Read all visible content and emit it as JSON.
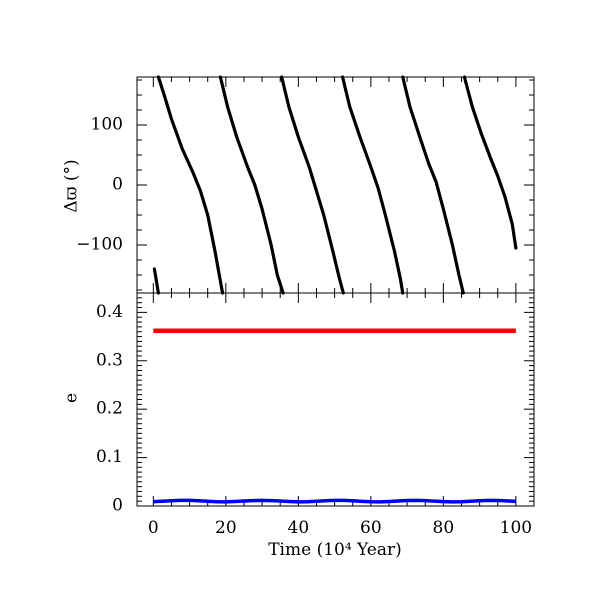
{
  "chart_data": [
    {
      "type": "line",
      "ylabel": "Δϖ (°)",
      "xlim": [
        -4.5,
        105
      ],
      "ylim": [
        -180,
        180
      ],
      "yticks_major": [
        -100,
        0,
        100
      ],
      "ytick_labels": [
        "−100",
        "0",
        "100"
      ],
      "series": [
        {
          "color": "#000000",
          "segments": [
            [
              [
                0.3,
                -140
              ],
              [
                1.4,
                -180
              ]
            ],
            [
              [
                1.4,
                180
              ],
              [
                3,
                150
              ],
              [
                5,
                110
              ],
              [
                8,
                60
              ],
              [
                11,
                20
              ],
              [
                13,
                -10
              ],
              [
                15,
                -50
              ],
              [
                17,
                -110
              ],
              [
                18.2,
                -150
              ],
              [
                19.1,
                -180
              ]
            ],
            [
              [
                18.5,
                180
              ],
              [
                20.5,
                130
              ],
              [
                23,
                80
              ],
              [
                26,
                30
              ],
              [
                28,
                0
              ],
              [
                30,
                -40
              ],
              [
                32.5,
                -100
              ],
              [
                34.2,
                -150
              ],
              [
                35.8,
                -180
              ]
            ],
            [
              [
                35.4,
                180
              ],
              [
                37.4,
                130
              ],
              [
                40,
                80
              ],
              [
                43,
                30
              ],
              [
                45,
                -10
              ],
              [
                47,
                -50
              ],
              [
                49.5,
                -110
              ],
              [
                51.3,
                -155
              ],
              [
                52.4,
                -180
              ]
            ],
            [
              [
                52.2,
                180
              ],
              [
                54.2,
                130
              ],
              [
                57,
                80
              ],
              [
                60,
                30
              ],
              [
                62,
                -5
              ],
              [
                64,
                -50
              ],
              [
                66.5,
                -110
              ],
              [
                68.1,
                -155
              ],
              [
                68.8,
                -180
              ]
            ],
            [
              [
                68.8,
                180
              ],
              [
                70.8,
                130
              ],
              [
                73.5,
                80
              ],
              [
                76,
                35
              ],
              [
                78,
                5
              ],
              [
                80,
                -40
              ],
              [
                82.5,
                -100
              ],
              [
                84.3,
                -150
              ],
              [
                85.5,
                -180
              ]
            ],
            [
              [
                85.8,
                180
              ],
              [
                88,
                130
              ],
              [
                90.5,
                85
              ],
              [
                93,
                45
              ],
              [
                95,
                15
              ],
              [
                97,
                -20
              ],
              [
                99,
                -65
              ],
              [
                100,
                -105
              ]
            ]
          ]
        }
      ]
    },
    {
      "type": "line",
      "ylabel": "e",
      "xlabel": "Time (10⁴ Year)",
      "xlim": [
        -4.5,
        105
      ],
      "ylim": [
        0,
        0.44
      ],
      "yticks_major": [
        0,
        0.1,
        0.2,
        0.3,
        0.4
      ],
      "ytick_labels": [
        "0",
        "0.1",
        "0.2",
        "0.3",
        "0.4"
      ],
      "xticks_major": [
        0,
        20,
        40,
        60,
        80,
        100
      ],
      "xtick_labels": [
        "0",
        "20",
        "40",
        "60",
        "80",
        "100"
      ],
      "series": [
        {
          "color": "#ff0000",
          "x": [
            0,
            100
          ],
          "values": [
            0.362,
            0.362
          ]
        },
        {
          "color": "#0000ff",
          "x": [
            0,
            2.5,
            5,
            7.5,
            10,
            12.5,
            15,
            17.5,
            20,
            22.5,
            25,
            27.5,
            30,
            32.5,
            35,
            37.5,
            40,
            42.5,
            45,
            47.5,
            50,
            52.5,
            55,
            57.5,
            60,
            62.5,
            65,
            67.5,
            70,
            72.5,
            75,
            77.5,
            80,
            82.5,
            85,
            87.5,
            90,
            92.5,
            95,
            97.5,
            100
          ],
          "values": [
            0.009,
            0.0098,
            0.0109,
            0.0116,
            0.0116,
            0.0109,
            0.0097,
            0.0087,
            0.0085,
            0.0092,
            0.0103,
            0.0112,
            0.0115,
            0.0112,
            0.0103,
            0.0092,
            0.0086,
            0.0087,
            0.0097,
            0.0109,
            0.0115,
            0.0115,
            0.0108,
            0.0096,
            0.0087,
            0.0085,
            0.0093,
            0.0104,
            0.0113,
            0.0116,
            0.0111,
            0.0101,
            0.0091,
            0.0085,
            0.0088,
            0.0098,
            0.0109,
            0.0115,
            0.0114,
            0.0106,
            0.0095
          ]
        }
      ]
    }
  ]
}
